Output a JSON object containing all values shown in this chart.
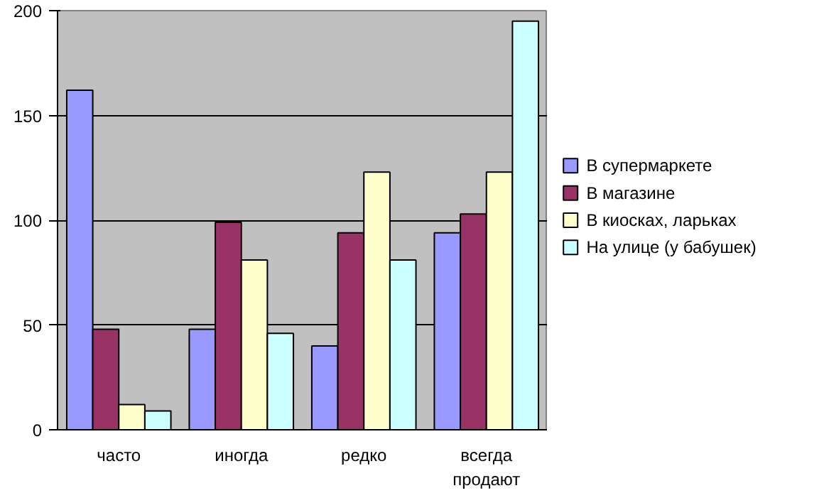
{
  "chart_data": {
    "type": "bar",
    "categories": [
      "часто",
      "иногда",
      "редко",
      "всегда продают"
    ],
    "series": [
      {
        "name": "В супермаркете",
        "color": "#9999ff",
        "values": [
          162,
          48,
          40,
          94
        ]
      },
      {
        "name": "В магазине",
        "color": "#993366",
        "values": [
          48,
          99,
          94,
          103
        ]
      },
      {
        "name": "В киосках, ларьках",
        "color": "#ffffcc",
        "values": [
          12,
          81,
          123,
          123
        ]
      },
      {
        "name": "На улице (у бабушек)",
        "color": "#ccffff",
        "values": [
          9,
          46,
          81,
          195
        ]
      }
    ],
    "ylim": [
      0,
      200
    ],
    "yticks": [
      0,
      50,
      100,
      150,
      200
    ],
    "grid": "y",
    "legend": "right"
  }
}
